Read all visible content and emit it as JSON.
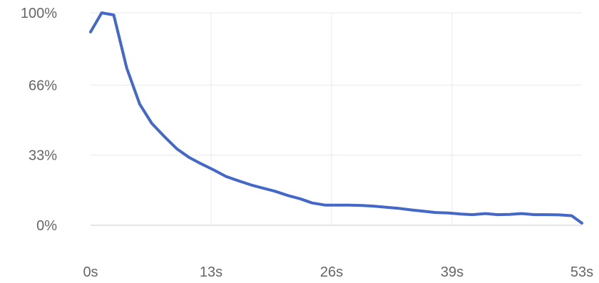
{
  "chart_data": {
    "type": "line",
    "title": "",
    "xlabel": "",
    "ylabel": "",
    "x_tick_labels": [
      "0s",
      "13s",
      "26s",
      "39s",
      "53s"
    ],
    "x_ticks": [
      0,
      13,
      26,
      39,
      53
    ],
    "y_tick_labels": [
      "100%",
      "66%",
      "33%",
      "0%"
    ],
    "y_ticks": [
      100,
      66,
      33,
      0
    ],
    "xlim": [
      0,
      53
    ],
    "ylim": [
      0,
      100
    ],
    "grid": true,
    "line_color": "#4468c8",
    "grid_color": "#e8e8e8",
    "baseline_color": "#cccccc",
    "series": [
      {
        "x": [
          0,
          1.2,
          2.5,
          3.9,
          5.3,
          6.6,
          7.9,
          9.3,
          10.6,
          11.9,
          13.3,
          14.6,
          15.9,
          17.3,
          18.6,
          19.9,
          21.3,
          22.6,
          23.9,
          25.3,
          26.6,
          27.9,
          29.3,
          30.6,
          31.9,
          33.2,
          34.6,
          35.9,
          37.2,
          38.6,
          39.9,
          41.2,
          42.6,
          43.9,
          45.2,
          46.5,
          47.9,
          49.2,
          50.5,
          51.9,
          53
        ],
        "y": [
          91,
          100,
          99,
          74,
          57,
          48,
          42,
          36,
          32,
          29,
          26,
          23,
          21,
          19,
          17.5,
          16,
          14,
          12.5,
          10.5,
          9.5,
          9.5,
          9.5,
          9.3,
          9,
          8.5,
          8,
          7.2,
          6.6,
          6,
          5.8,
          5.3,
          5,
          5.5,
          5,
          5.1,
          5.5,
          5,
          5,
          4.9,
          4.5,
          1
        ]
      }
    ]
  }
}
